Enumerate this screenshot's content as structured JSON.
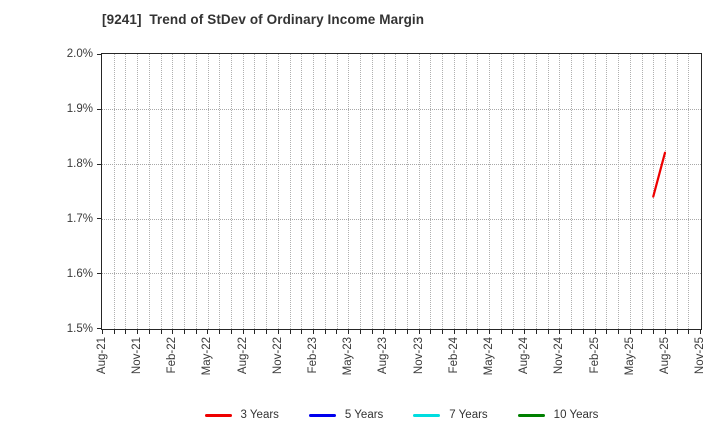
{
  "title": "[9241]  Trend of StDev of Ordinary Income Margin",
  "chart_data": {
    "type": "line",
    "title": "[9241]  Trend of StDev of Ordinary Income Margin",
    "xlabel": "",
    "ylabel": "",
    "ylim": [
      1.5,
      2.0
    ],
    "y_tick_values": [
      1.5,
      1.6,
      1.7,
      1.8,
      1.9,
      2.0
    ],
    "y_tick_labels": [
      "1.5%",
      "1.6%",
      "1.7%",
      "1.8%",
      "1.9%",
      "2.0%"
    ],
    "x_axis_unit": "month",
    "x_months_total": 51,
    "x_tick_month_indices": [
      0,
      3,
      6,
      9,
      12,
      15,
      18,
      21,
      24,
      27,
      30,
      33,
      36,
      39,
      42,
      45,
      48,
      51
    ],
    "x_tick_labels": [
      "Aug-21",
      "Nov-21",
      "Feb-22",
      "May-22",
      "Aug-22",
      "Nov-22",
      "Feb-23",
      "May-23",
      "Aug-23",
      "Nov-23",
      "Feb-24",
      "May-24",
      "Aug-24",
      "Nov-24",
      "Feb-25",
      "May-25",
      "Aug-25",
      "Nov-25"
    ],
    "grid": true,
    "grid_style": "dotted",
    "legend_position": "bottom",
    "border_color": "#262626",
    "grid_color": "#b0b0b0",
    "text_color": "#3a3a3a",
    "series": [
      {
        "name": "3 Years",
        "color": "#ee0000",
        "points": [
          {
            "month": "Jul-25",
            "month_index": 47,
            "value": 1.74
          },
          {
            "month": "Aug-25",
            "month_index": 48,
            "value": 1.82
          }
        ]
      },
      {
        "name": "5 Years",
        "color": "#0000ee",
        "points": []
      },
      {
        "name": "7 Years",
        "color": "#00dde0",
        "points": []
      },
      {
        "name": "10 Years",
        "color": "#008000",
        "points": []
      }
    ]
  }
}
